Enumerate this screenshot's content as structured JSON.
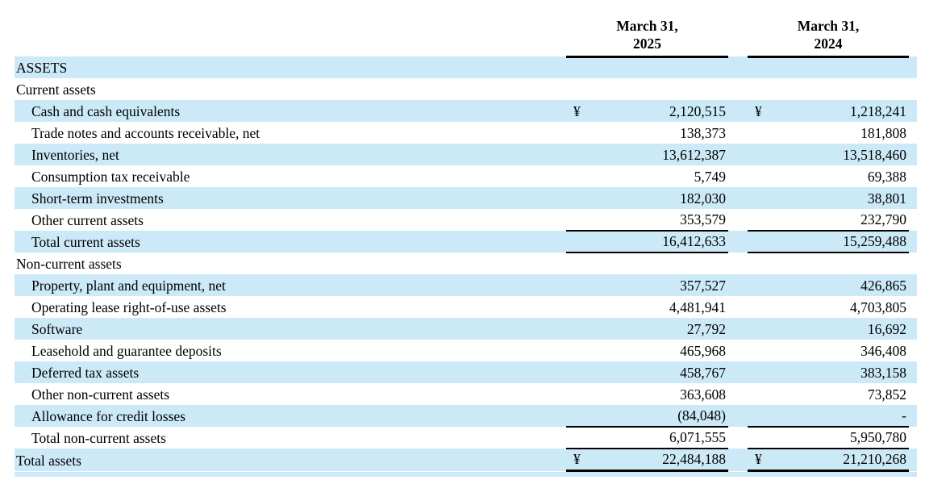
{
  "currency_symbol": "¥",
  "header": {
    "col2025": {
      "line1": "March 31,",
      "line2": "2025"
    },
    "col2024": {
      "line1": "March 31,",
      "line2": "2024"
    }
  },
  "colors": {
    "stripe": "#cce9f8",
    "rule": "#000000",
    "text": "#000000"
  },
  "rows": [
    {
      "label": "ASSETS",
      "indent": 0,
      "shaded": true,
      "yen": false,
      "v2025": "",
      "v2024": "",
      "rule": "none"
    },
    {
      "label": "Current assets",
      "indent": 0,
      "shaded": false,
      "yen": false,
      "v2025": "",
      "v2024": "",
      "rule": "none"
    },
    {
      "label": "Cash and cash equivalents",
      "indent": 1,
      "shaded": true,
      "yen": true,
      "v2025": "2,120,515",
      "v2024": "1,218,241",
      "rule": "none"
    },
    {
      "label": "Trade notes and accounts receivable, net",
      "indent": 1,
      "shaded": false,
      "yen": false,
      "v2025": "138,373",
      "v2024": "181,808",
      "rule": "none"
    },
    {
      "label": "Inventories, net",
      "indent": 1,
      "shaded": true,
      "yen": false,
      "v2025": "13,612,387",
      "v2024": "13,518,460",
      "rule": "none"
    },
    {
      "label": "Consumption tax receivable",
      "indent": 1,
      "shaded": false,
      "yen": false,
      "v2025": "5,749",
      "v2024": "69,388",
      "rule": "none"
    },
    {
      "label": "Short-term investments",
      "indent": 1,
      "shaded": true,
      "yen": false,
      "v2025": "182,030",
      "v2024": "38,801",
      "rule": "none"
    },
    {
      "label": "Other current assets",
      "indent": 1,
      "shaded": false,
      "yen": false,
      "v2025": "353,579",
      "v2024": "232,790",
      "rule": "single"
    },
    {
      "label": "Total current assets",
      "indent": 1,
      "shaded": true,
      "yen": false,
      "v2025": "16,412,633",
      "v2024": "15,259,488",
      "rule": "single"
    },
    {
      "label": "Non-current assets",
      "indent": 0,
      "shaded": false,
      "yen": false,
      "v2025": "",
      "v2024": "",
      "rule": "none"
    },
    {
      "label": "Property, plant and equipment, net",
      "indent": 1,
      "shaded": true,
      "yen": false,
      "v2025": "357,527",
      "v2024": "426,865",
      "rule": "none"
    },
    {
      "label": "Operating lease right-of-use assets",
      "indent": 1,
      "shaded": false,
      "yen": false,
      "v2025": "4,481,941",
      "v2024": "4,703,805",
      "rule": "none"
    },
    {
      "label": "Software",
      "indent": 1,
      "shaded": true,
      "yen": false,
      "v2025": "27,792",
      "v2024": "16,692",
      "rule": "none"
    },
    {
      "label": "Leasehold and guarantee deposits",
      "indent": 1,
      "shaded": false,
      "yen": false,
      "v2025": "465,968",
      "v2024": "346,408",
      "rule": "none"
    },
    {
      "label": "Deferred tax assets",
      "indent": 1,
      "shaded": true,
      "yen": false,
      "v2025": "458,767",
      "v2024": "383,158",
      "rule": "none"
    },
    {
      "label": "Other non-current assets",
      "indent": 1,
      "shaded": false,
      "yen": false,
      "v2025": "363,608",
      "v2024": "73,852",
      "rule": "none"
    },
    {
      "label": "Allowance for credit losses",
      "indent": 1,
      "shaded": true,
      "yen": false,
      "v2025": "(84,048)",
      "v2024": "-",
      "rule": "single"
    },
    {
      "label": "Total non-current assets",
      "indent": 1,
      "shaded": false,
      "yen": false,
      "v2025": "6,071,555",
      "v2024": "5,950,780",
      "rule": "single"
    },
    {
      "label": "Total assets",
      "indent": 0,
      "shaded": true,
      "yen": true,
      "v2025": "22,484,188",
      "v2024": "21,210,268",
      "rule": "grand"
    }
  ]
}
